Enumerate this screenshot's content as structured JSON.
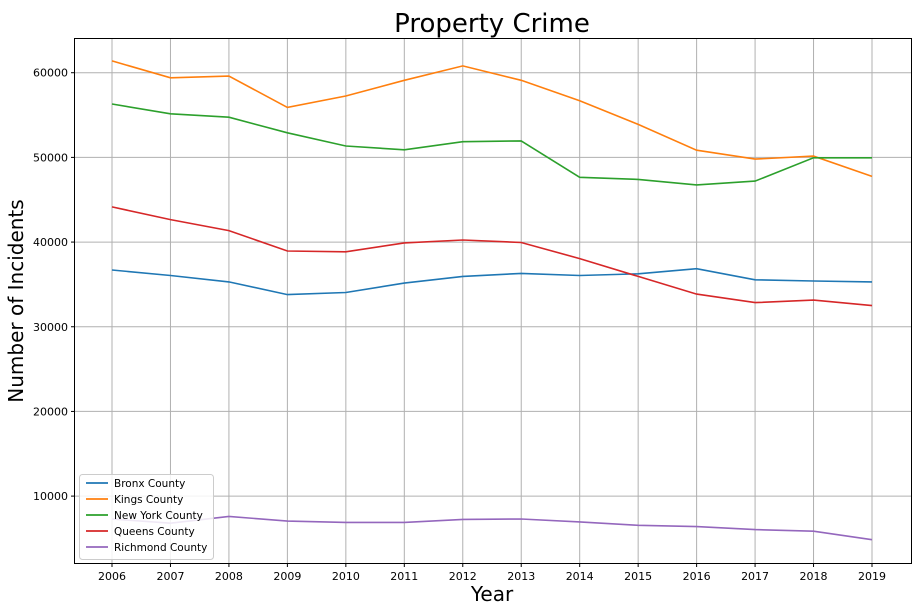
{
  "chart_data": {
    "type": "line",
    "title": "Property Crime",
    "xlabel": "Year",
    "ylabel": "Number of Incidents",
    "x": [
      "2006",
      "2007",
      "2008",
      "2009",
      "2010",
      "2011",
      "2012",
      "2013",
      "2014",
      "2015",
      "2016",
      "2017",
      "2018",
      "2019"
    ],
    "x_ticks": [
      "2006",
      "2007",
      "2008",
      "2009",
      "2010",
      "2011",
      "2012",
      "2013",
      "2014",
      "2015",
      "2016",
      "2017",
      "2018",
      "2019"
    ],
    "y_ticks": [
      "10000",
      "20000",
      "30000",
      "40000",
      "50000",
      "60000"
    ],
    "ylim": [
      2100,
      64100
    ],
    "grid": true,
    "legend_position": "lower-left",
    "series": [
      {
        "name": "Bronx County",
        "color": "#1f77b4",
        "values": [
          36700,
          36050,
          35300,
          33800,
          34050,
          35150,
          35950,
          36300,
          36050,
          36250,
          36850,
          35550,
          35400,
          35300
        ]
      },
      {
        "name": "Kings County",
        "color": "#ff7f0e",
        "values": [
          61400,
          59400,
          59600,
          55900,
          57250,
          59100,
          60800,
          59100,
          56700,
          53900,
          50850,
          49800,
          50150,
          47750
        ]
      },
      {
        "name": "New York County",
        "color": "#2ca02c",
        "values": [
          56300,
          55150,
          54750,
          52900,
          51350,
          50900,
          51850,
          51950,
          47650,
          47400,
          46750,
          47200,
          49950,
          49950
        ]
      },
      {
        "name": "Queens County",
        "color": "#d62728",
        "values": [
          44150,
          42650,
          41350,
          38950,
          38850,
          39900,
          40250,
          39950,
          38050,
          35950,
          33850,
          32850,
          33150,
          32500
        ]
      },
      {
        "name": "Richmond County",
        "color": "#9467bd",
        "values": [
          7300,
          6800,
          7600,
          7050,
          6900,
          6900,
          7250,
          7300,
          6950,
          6550,
          6400,
          6050,
          5850,
          4850
        ]
      }
    ]
  }
}
